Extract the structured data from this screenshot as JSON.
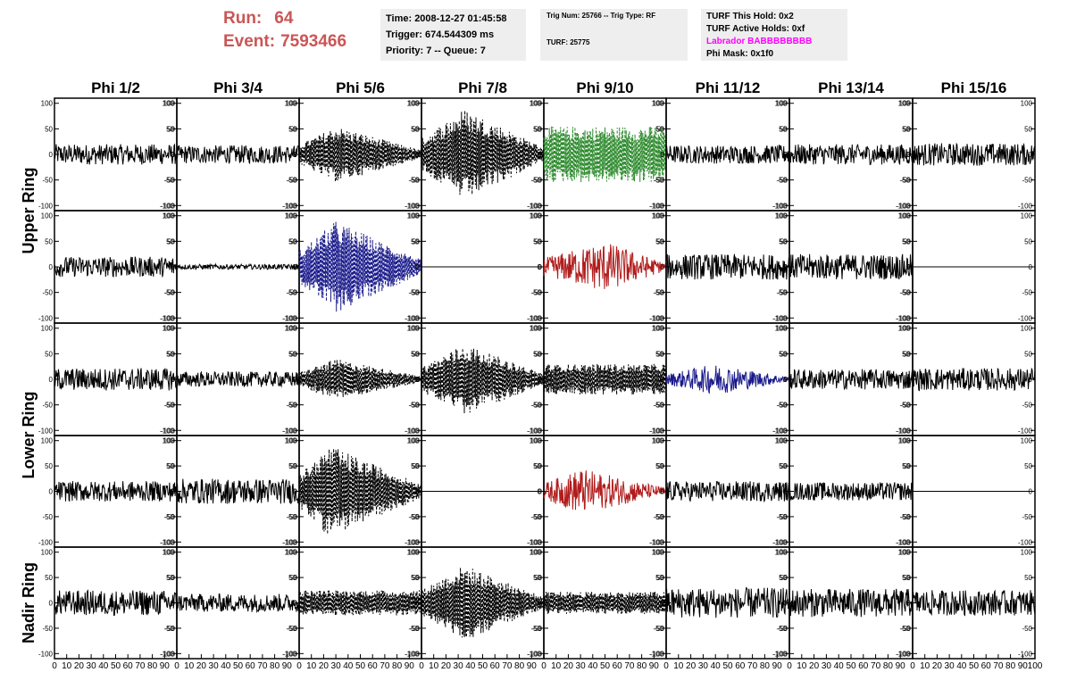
{
  "header": {
    "run_label": "Run:",
    "run_value": "64",
    "event_label": "Event:",
    "event_value": "7593466",
    "colors": {
      "run_text": "#cc5555",
      "box_bg": "#eeeeee",
      "labrador": "#ff00ff"
    }
  },
  "time_box": {
    "time": "Time: 2008-12-27 01:45:58",
    "trigger": "Trigger: 674.544309 ms",
    "priority": "Priority: 7 -- Queue: 7"
  },
  "trig_box": {
    "trig": "Trig Num: 25766 -- Trig Type: RF",
    "turf": "TURF: 25775"
  },
  "turf_box": {
    "hold": "TURF This Hold: 0x2",
    "active": "TURF Active Holds: 0xf",
    "labrador": "Labrador BABBBBBBBB",
    "phimask": "Phi Mask: 0x1f0"
  },
  "chart_data": {
    "type": "line",
    "columns": [
      "Phi 1/2",
      "Phi 3/4",
      "Phi 5/6",
      "Phi 7/8",
      "Phi 9/10",
      "Phi 11/12",
      "Phi 13/14",
      "Phi 15/16"
    ],
    "ring_labels": [
      {
        "text": "Upper Ring",
        "rows": [
          0,
          1
        ]
      },
      {
        "text": "Lower Ring",
        "rows": [
          2,
          3
        ]
      },
      {
        "text": "Nadir Ring",
        "rows": [
          4
        ]
      }
    ],
    "ylim": [
      -110,
      110
    ],
    "yticks": [
      -100,
      -50,
      0,
      50,
      100
    ],
    "xlim": [
      0,
      100
    ],
    "xticks": [
      0,
      10,
      20,
      30,
      40,
      50,
      60,
      70,
      80,
      90,
      100
    ],
    "xtick_labels": [
      "0",
      "10",
      "20",
      "30",
      "40",
      "50",
      "60",
      "70",
      "80",
      "90",
      "100"
    ],
    "colors": {
      "black": "#000000",
      "green": "#2e8b2e",
      "blue": "#1a1a8c",
      "red": "#b01c1c"
    },
    "panels": [
      [
        {
          "amp": 20,
          "dashed": false,
          "color": "black",
          "env": "flat"
        },
        {
          "amp": 18,
          "dashed": false,
          "color": "black",
          "env": "flat"
        },
        {
          "amp": 55,
          "dashed": true,
          "color": "black",
          "env": "bump",
          "peak": 0.3
        },
        {
          "amp": 90,
          "dashed": true,
          "color": "black",
          "env": "bump",
          "peak": 0.35
        },
        {
          "amp": 55,
          "dashed": true,
          "color": "green",
          "env": "flat"
        },
        {
          "amp": 18,
          "dashed": false,
          "color": "black",
          "env": "flat"
        },
        {
          "amp": 20,
          "dashed": false,
          "color": "black",
          "env": "flat"
        },
        {
          "amp": 22,
          "dashed": false,
          "color": "black",
          "env": "flat"
        }
      ],
      [
        {
          "amp": 20,
          "dashed": false,
          "color": "black",
          "env": "flat"
        },
        {
          "amp": 5,
          "dashed": false,
          "color": "black",
          "env": "flat"
        },
        {
          "amp": 90,
          "dashed": true,
          "color": "blue",
          "env": "bump",
          "peak": 0.3
        },
        {
          "amp": 0,
          "dashed": false,
          "color": "black",
          "env": "flat"
        },
        {
          "amp": 50,
          "dashed": false,
          "color": "red",
          "env": "bump",
          "peak": 0.5
        },
        {
          "amp": 25,
          "dashed": false,
          "color": "black",
          "env": "flat"
        },
        {
          "amp": 25,
          "dashed": false,
          "color": "black",
          "env": "flat"
        },
        {
          "amp": 0,
          "dashed": false,
          "color": "black",
          "env": "flat"
        }
      ],
      [
        {
          "amp": 22,
          "dashed": false,
          "color": "black",
          "env": "flat"
        },
        {
          "amp": 15,
          "dashed": false,
          "color": "black",
          "env": "flat"
        },
        {
          "amp": 40,
          "dashed": true,
          "color": "black",
          "env": "bump",
          "peak": 0.3
        },
        {
          "amp": 70,
          "dashed": true,
          "color": "black",
          "env": "bump",
          "peak": 0.35
        },
        {
          "amp": 30,
          "dashed": true,
          "color": "black",
          "env": "flat"
        },
        {
          "amp": 30,
          "dashed": false,
          "color": "blue",
          "env": "bump",
          "peak": 0.4
        },
        {
          "amp": 20,
          "dashed": false,
          "color": "black",
          "env": "flat"
        },
        {
          "amp": 22,
          "dashed": false,
          "color": "black",
          "env": "flat"
        }
      ],
      [
        {
          "amp": 20,
          "dashed": false,
          "color": "black",
          "env": "flat"
        },
        {
          "amp": 25,
          "dashed": false,
          "color": "black",
          "env": "flat"
        },
        {
          "amp": 90,
          "dashed": true,
          "color": "black",
          "env": "bump",
          "peak": 0.25
        },
        {
          "amp": 0,
          "dashed": false,
          "color": "black",
          "env": "flat"
        },
        {
          "amp": 45,
          "dashed": false,
          "color": "red",
          "env": "bump",
          "peak": 0.3
        },
        {
          "amp": 20,
          "dashed": false,
          "color": "black",
          "env": "flat"
        },
        {
          "amp": 18,
          "dashed": false,
          "color": "black",
          "env": "flat"
        },
        {
          "amp": 0,
          "dashed": false,
          "color": "black",
          "env": "flat"
        }
      ],
      [
        {
          "amp": 25,
          "dashed": false,
          "color": "black",
          "env": "flat"
        },
        {
          "amp": 18,
          "dashed": false,
          "color": "black",
          "env": "flat"
        },
        {
          "amp": 25,
          "dashed": true,
          "color": "black",
          "env": "flat"
        },
        {
          "amp": 75,
          "dashed": true,
          "color": "black",
          "env": "bump",
          "peak": 0.35
        },
        {
          "amp": 22,
          "dashed": true,
          "color": "black",
          "env": "flat"
        },
        {
          "amp": 30,
          "dashed": false,
          "color": "black",
          "env": "flat"
        },
        {
          "amp": 28,
          "dashed": false,
          "color": "black",
          "env": "flat"
        },
        {
          "amp": 25,
          "dashed": false,
          "color": "black",
          "env": "flat"
        }
      ]
    ]
  }
}
